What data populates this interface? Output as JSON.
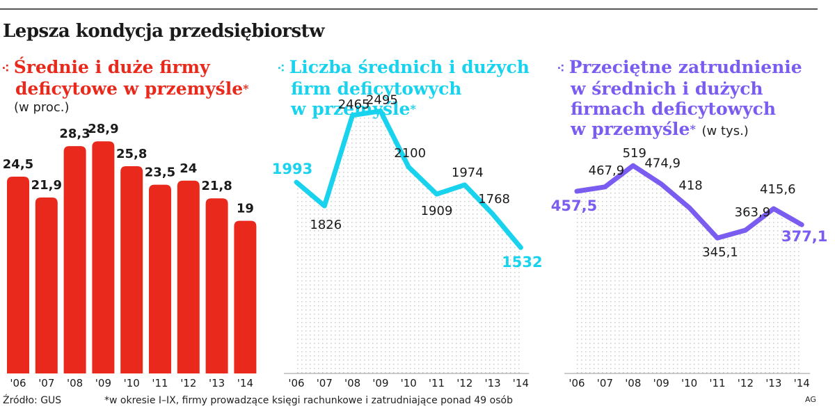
{
  "title": "Lepsza kondycja przedsiębiorstw",
  "source": "Źródło: GUS",
  "footnote": "*w okresie I–IX, firmy prowadzące księgi rachunkowe i zatrudniające ponad 49 osób",
  "credit": "AG",
  "chart_data": [
    {
      "type": "bar",
      "title_lines": [
        "Średnie i duże firmy",
        "deficytowe w przemyśle"
      ],
      "title_asterisk": "*",
      "unit": "(w proc.)",
      "color": "#e8291c",
      "categories": [
        "'06",
        "'07",
        "'08",
        "'09",
        "'10",
        "'11",
        "'12",
        "'13",
        "'14"
      ],
      "values": [
        24.5,
        21.9,
        28.3,
        28.9,
        25.8,
        23.5,
        24,
        21.8,
        19
      ],
      "labels": [
        "24,5",
        "21,9",
        "28,3",
        "28,9",
        "25,8",
        "23,5",
        "24",
        "21,8",
        "19"
      ]
    },
    {
      "type": "area",
      "title_lines": [
        "Liczba średnich i dużych",
        "firm deficytowych",
        "w przemyśle"
      ],
      "title_asterisk": "*",
      "color": "#19d3ee",
      "categories": [
        "'06",
        "'07",
        "'08",
        "'09",
        "'10",
        "'11",
        "'12",
        "'13",
        "'14"
      ],
      "values": [
        1993,
        1826,
        2465,
        2495,
        2100,
        1909,
        1974,
        1768,
        1532
      ],
      "labels": [
        "1993",
        "1826",
        "2465",
        "2495",
        "2100",
        "1909",
        "1974",
        "1768",
        "1532"
      ]
    },
    {
      "type": "area",
      "title_lines": [
        "Przeciętne zatrudnienie",
        "w średnich i dużych",
        "firmach deficytowych",
        "w przemyśle"
      ],
      "title_asterisk": "*",
      "unit": "(w tys.)",
      "color": "#7b5cf0",
      "categories": [
        "'06",
        "'07",
        "'08",
        "'09",
        "'10",
        "'11",
        "'12",
        "'13",
        "'14"
      ],
      "values": [
        457.5,
        467.9,
        519,
        474.9,
        418,
        345.1,
        363.9,
        415.6,
        377.1
      ],
      "labels": [
        "457,5",
        "467,9",
        "519",
        "474,9",
        "418",
        "345,1",
        "363,9",
        "415,6",
        "377,1"
      ]
    }
  ]
}
